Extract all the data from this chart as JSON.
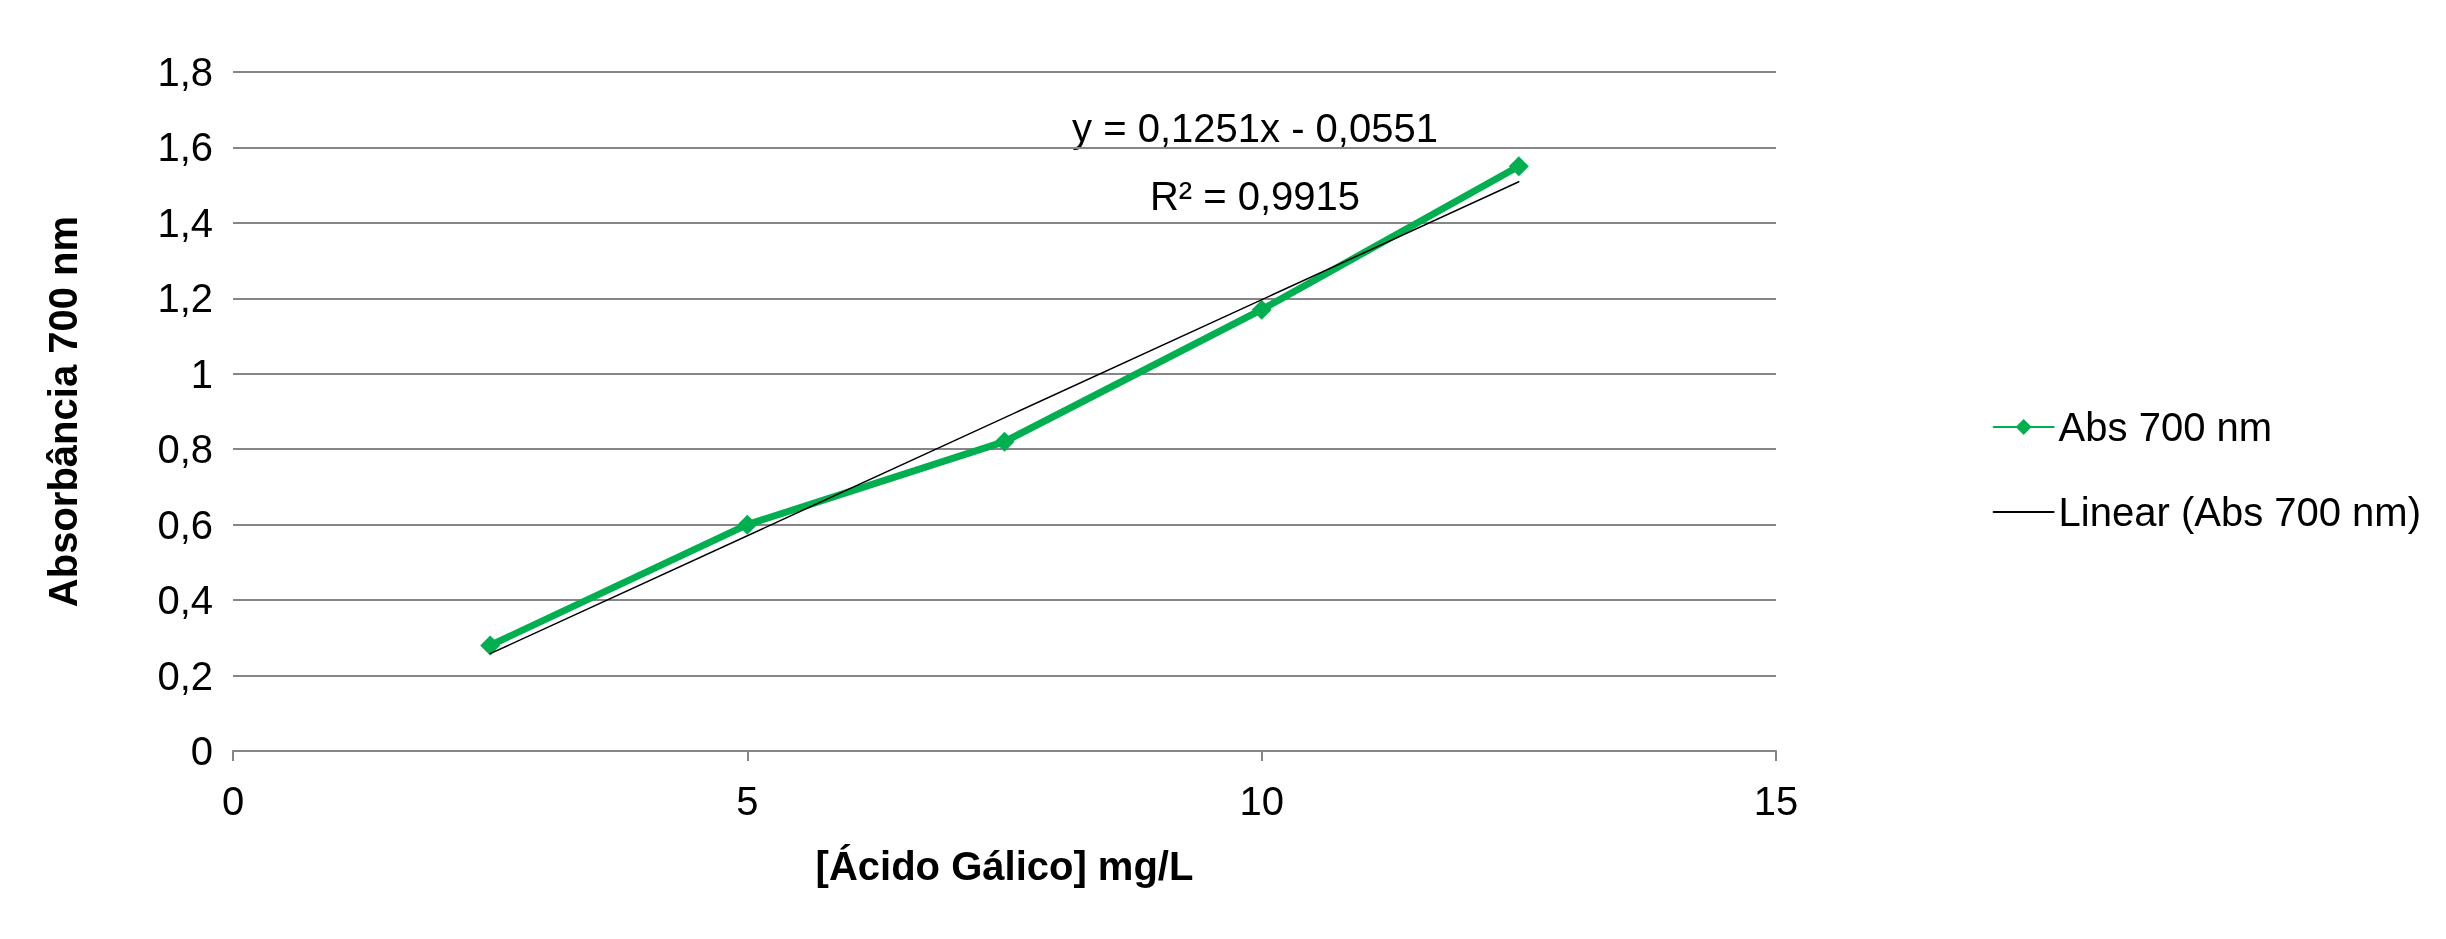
{
  "chart_data": {
    "type": "line",
    "xlabel": "[Ácido Gálico] mg/L",
    "ylabel": "Absorbância 700 nm",
    "x": [
      2.5,
      5,
      7.5,
      10,
      12.5
    ],
    "series": [
      {
        "name": "Abs 700 nm",
        "color": "#00b050",
        "values": [
          0.28,
          0.6,
          0.82,
          1.17,
          1.55
        ],
        "marker": "diamond"
      },
      {
        "name": "Linear (Abs 700 nm)",
        "color": "#000000",
        "x": [
          2.5,
          12.5
        ],
        "values": [
          0.258,
          1.509
        ],
        "marker": "none"
      }
    ],
    "xlim": [
      0,
      15
    ],
    "xticks": [
      0,
      5,
      10,
      15
    ],
    "ylim": [
      0,
      1.8
    ],
    "yticks": [
      0,
      {
        "value": 0.2,
        "label": "0,2"
      },
      {
        "value": 0.4,
        "label": "0,4"
      },
      {
        "value": 0.6,
        "label": "0,6"
      },
      {
        "value": 0.8,
        "label": "0,8"
      },
      1,
      {
        "value": 1.2,
        "label": "1,2"
      },
      {
        "value": 1.4,
        "label": "1,4"
      },
      {
        "value": 1.6,
        "label": "1,6"
      },
      {
        "value": 1.8,
        "label": "1,8"
      }
    ],
    "grid": "y",
    "legend": "right",
    "annotations": [
      "y = 0,1251x - 0,0551",
      "R² = 0,9915"
    ]
  }
}
